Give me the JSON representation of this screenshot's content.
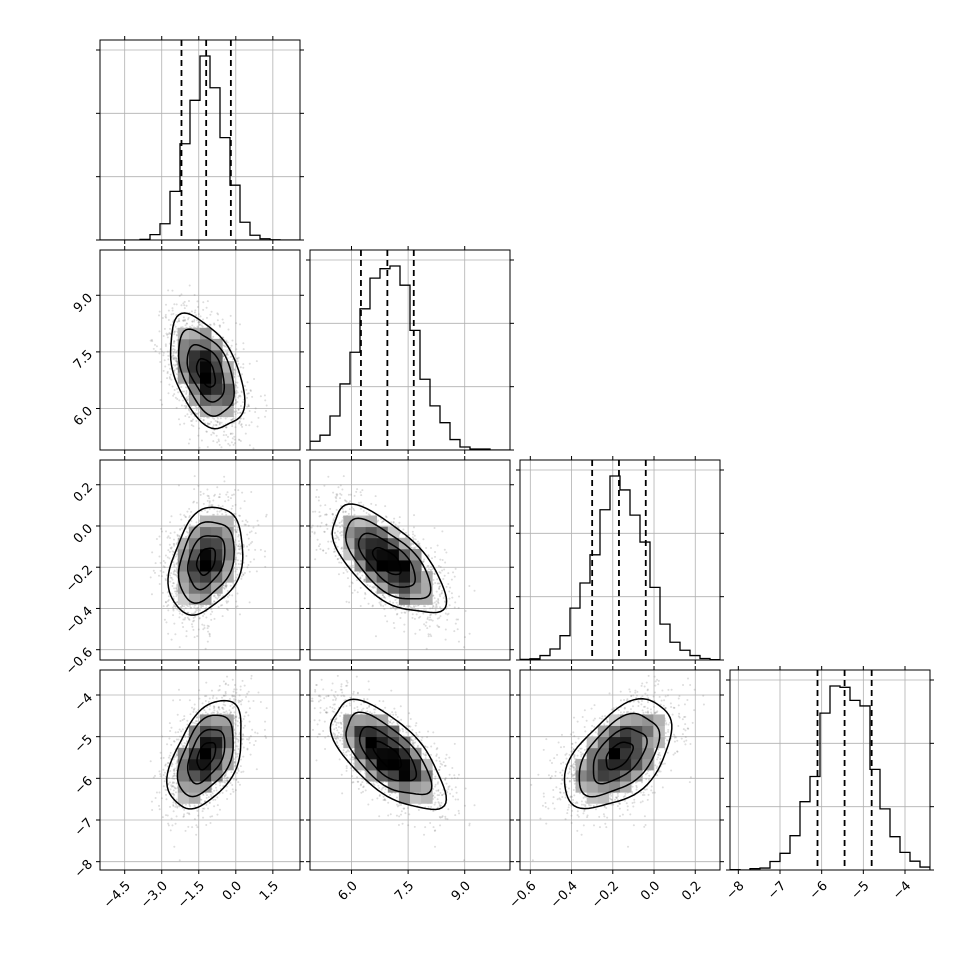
{
  "chart_data": {
    "type": "corner",
    "grid": true,
    "sample_color": "#777777",
    "parameters": [
      {
        "mean": -1.2,
        "sd": 0.75,
        "range": [
          -5.5,
          2.6
        ],
        "quantiles": [
          -2.2,
          -1.2,
          -0.2
        ],
        "ticks": [
          -4.5,
          -3.0,
          -1.5,
          0.0,
          1.5
        ],
        "tick_labels": [
          "−4.5",
          "−3.0",
          "−1.5",
          "0.0",
          "1.5"
        ]
      },
      {
        "mean": 6.95,
        "sd": 0.75,
        "range": [
          4.9,
          10.2
        ],
        "quantiles": [
          6.25,
          6.95,
          7.65
        ],
        "ticks": [
          6.0,
          7.5,
          9.0
        ],
        "tick_labels": [
          "6.0",
          "7.5",
          "9.0"
        ]
      },
      {
        "mean": -0.17,
        "sd": 0.13,
        "range": [
          -0.65,
          0.32
        ],
        "quantiles": [
          -0.3,
          -0.17,
          -0.04
        ],
        "ticks": [
          -0.6,
          -0.4,
          -0.2,
          0.0,
          0.2
        ],
        "tick_labels": [
          "−0.6",
          "−0.4",
          "−0.2",
          "0.0",
          "0.2"
        ]
      },
      {
        "mean": -5.45,
        "sd": 0.65,
        "range": [
          -8.2,
          -3.4
        ],
        "quantiles": [
          -6.1,
          -5.45,
          -4.8
        ],
        "ticks": [
          -8,
          -7,
          -6,
          -5,
          -4
        ],
        "tick_labels": [
          "−8",
          "−7",
          "−6",
          "−5",
          "−4"
        ]
      }
    ],
    "correlations": [
      [
        1.0,
        -0.45,
        0.3,
        0.45
      ],
      [
        -0.45,
        1.0,
        -0.65,
        -0.65
      ],
      [
        0.3,
        -0.65,
        1.0,
        0.5
      ],
      [
        0.45,
        -0.65,
        0.5,
        1.0
      ]
    ],
    "diag_ytick_fractions": [
      0.0,
      0.3333,
      0.6667,
      1.0
    ],
    "contour_levels_sigma": [
      0.5,
      1.0,
      1.5,
      2.0
    ],
    "hist_bins": 20,
    "n_samples": 4000
  }
}
